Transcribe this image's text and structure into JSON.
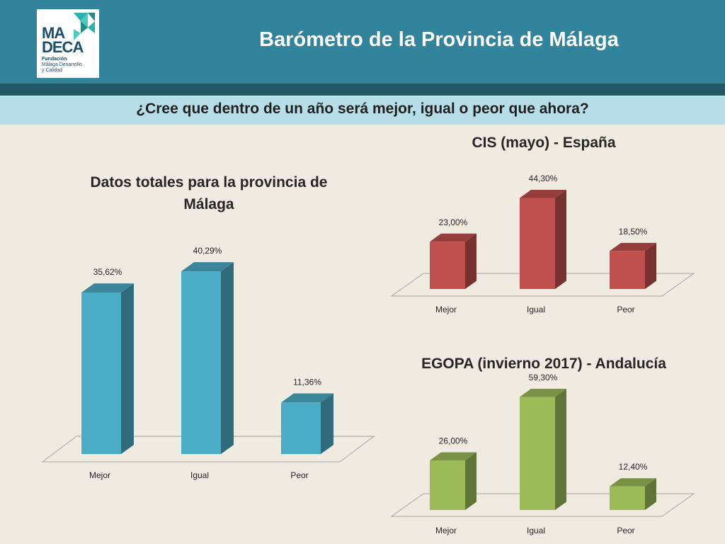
{
  "header": {
    "title": "Barómetro de la Provincia de Málaga",
    "logo": {
      "line1": "MA",
      "line2": "DECA",
      "small1": "Fundación",
      "small2": "Málaga Desarrollo",
      "small3": "y Calidad"
    }
  },
  "question": "¿Cree que dentro de un año será mejor, igual o peor que ahora?",
  "chart_data": [
    {
      "type": "bar",
      "title": "Datos totales para la provincia de Málaga",
      "categories": [
        "Mejor",
        "Igual",
        "Peor"
      ],
      "values": [
        35.62,
        40.29,
        11.36
      ],
      "labels": [
        "35,62%",
        "40,29%",
        "11,36%"
      ],
      "ylim": [
        0,
        45
      ],
      "color": "#4bacc6",
      "grid": false,
      "legend": "none"
    },
    {
      "type": "bar",
      "title": "CIS (mayo) - España",
      "categories": [
        "Mejor",
        "Igual",
        "Peor"
      ],
      "values": [
        23.0,
        44.3,
        18.5
      ],
      "labels": [
        "23,00%",
        "44,30%",
        "18,50%"
      ],
      "ylim": [
        0,
        50
      ],
      "color": "#c0504d",
      "grid": false,
      "legend": "none"
    },
    {
      "type": "bar",
      "title": "EGOPA (invierno 2017) - Andalucía",
      "categories": [
        "Mejor",
        "Igual",
        "Peor"
      ],
      "values": [
        26.0,
        59.3,
        12.4
      ],
      "labels": [
        "26,00%",
        "59,30%",
        "12,40%"
      ],
      "ylim": [
        0,
        65
      ],
      "color": "#9bbb59",
      "grid": false,
      "legend": "none"
    }
  ]
}
